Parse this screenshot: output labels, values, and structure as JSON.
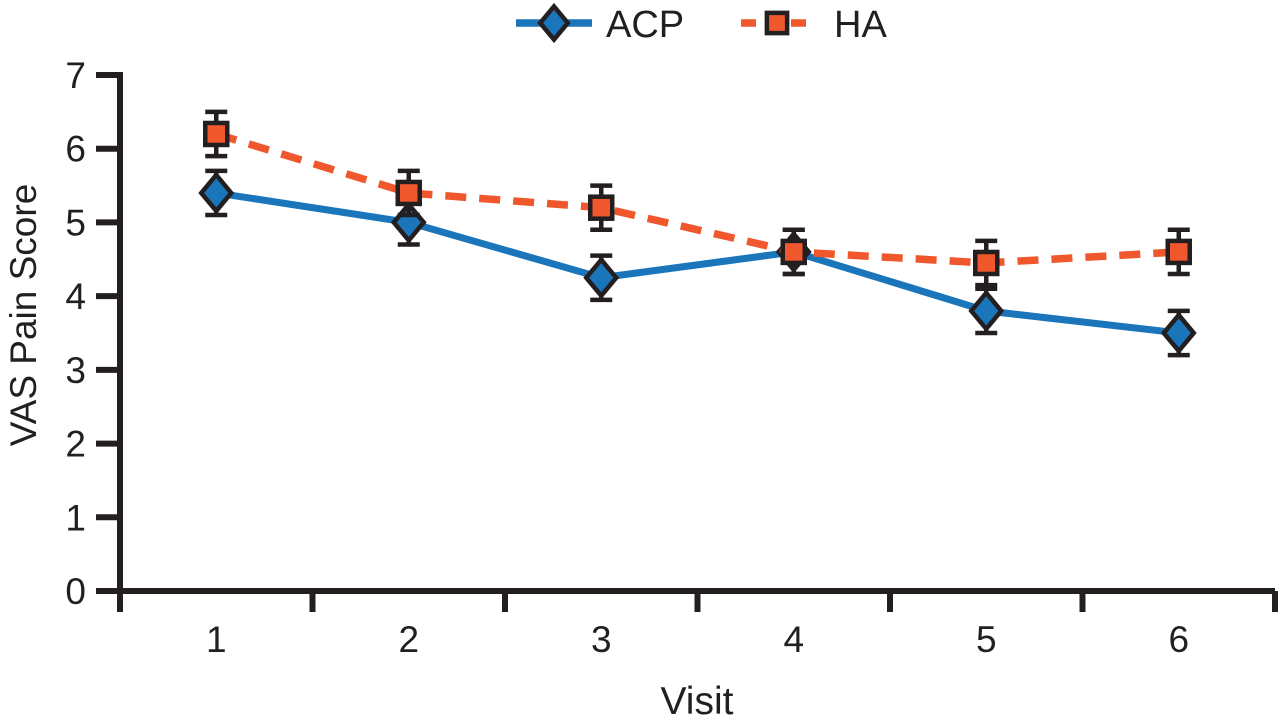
{
  "figure": {
    "background": "#FFFFFF",
    "text_color": "#231F20"
  },
  "chart_data": {
    "type": "line",
    "title": "",
    "xlabel": "Visit",
    "ylabel": "VAS Pain Score",
    "categories": [
      "1",
      "2",
      "3",
      "4",
      "5",
      "6"
    ],
    "yticks": [
      "0",
      "1",
      "2",
      "3",
      "4",
      "5",
      "6",
      "7"
    ],
    "ylim": [
      0,
      7
    ],
    "grid": false,
    "legend_position": "top-center",
    "error_bar_color": "#231F20",
    "series": [
      {
        "name": "ACP",
        "color": "#1B75BB",
        "marker": "diamond",
        "line_style": "solid",
        "values": [
          5.4,
          5.0,
          4.25,
          4.6,
          3.8,
          3.5
        ],
        "errors": [
          0.3,
          0.3,
          0.3,
          0.3,
          0.3,
          0.3
        ]
      },
      {
        "name": "HA",
        "color": "#F0572C",
        "marker": "square",
        "line_style": "dashed",
        "values": [
          6.2,
          5.4,
          5.2,
          4.6,
          4.45,
          4.6
        ],
        "errors": [
          0.3,
          0.3,
          0.3,
          0.3,
          0.3,
          0.3
        ]
      }
    ]
  }
}
